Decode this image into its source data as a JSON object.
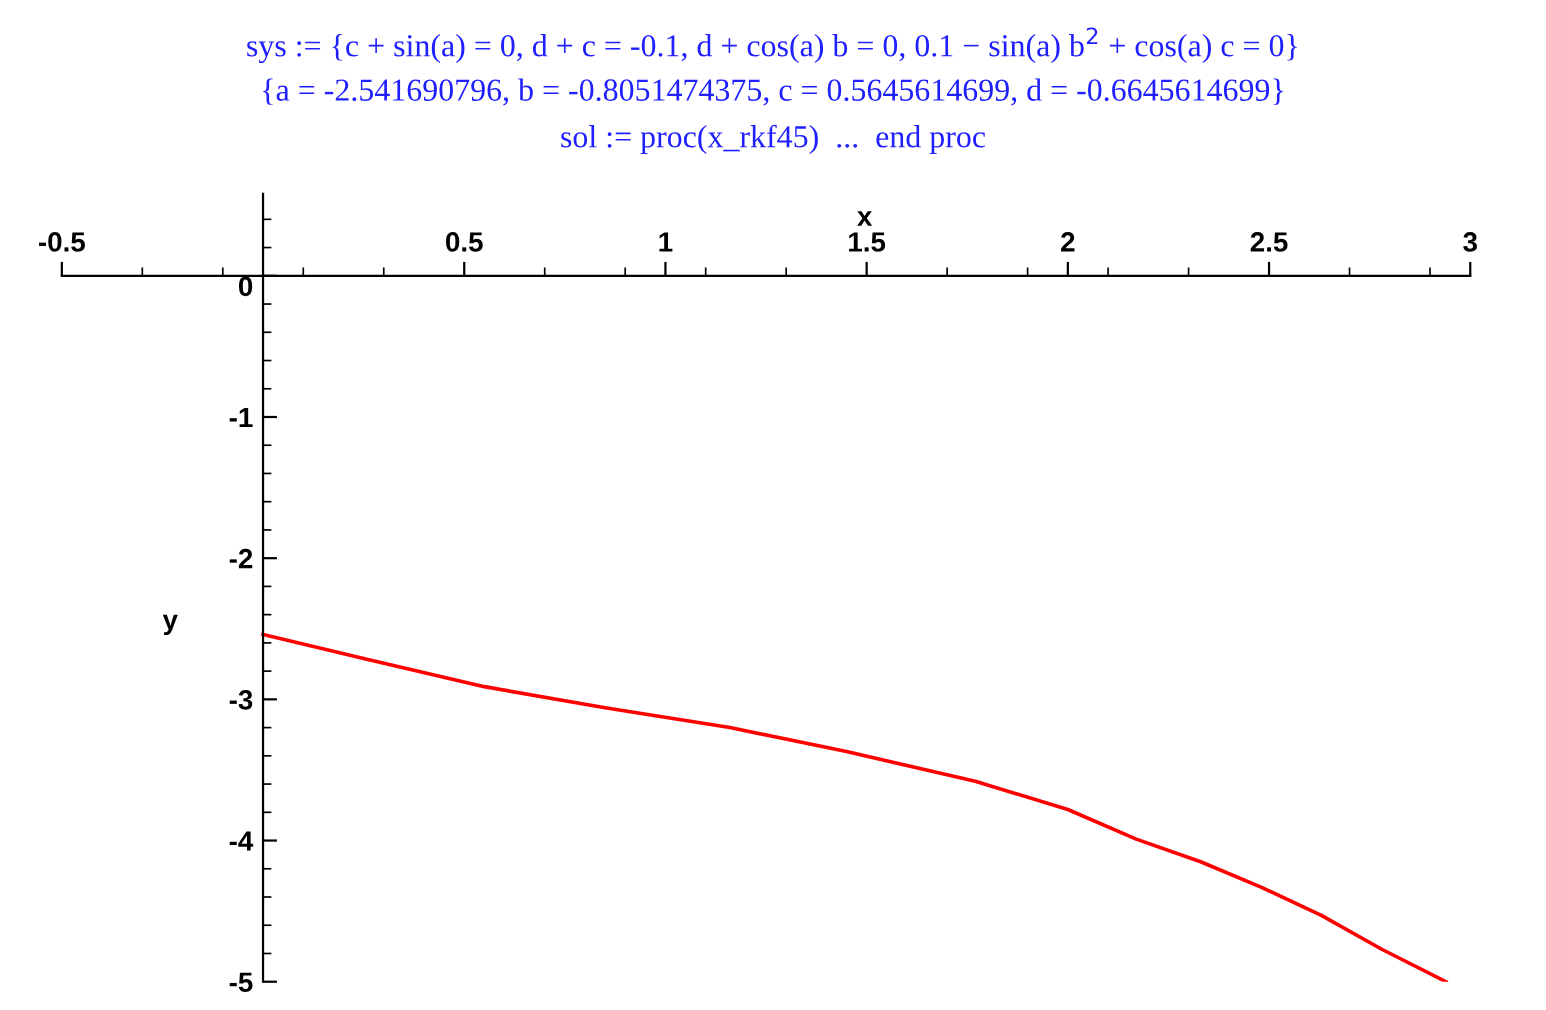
{
  "chart_data": {
    "type": "line",
    "title": "sys := {c + sin(a) = 0, d + c = -0.1, d + cos(a) b = 0, 0.1 − sin(a) b$^{2}$ + cos(a) c = 0}",
    "subtitle": "{a = -2.541690796, b = -0.8051474375, c = 0.5645614699, d = -0.6645614699}",
    "annotations": [
      "sol := proc(x_rkf45)  ...  end proc"
    ],
    "xlabel": "x",
    "ylabel": "y",
    "xlim": [
      -0.5,
      3
    ],
    "ylim": [
      -5,
      0.58
    ],
    "xticks": [
      -0.5,
      0.5,
      1,
      1.5,
      2,
      2.5,
      3
    ],
    "yticks": [
      -5,
      -4,
      -3,
      -2,
      -1,
      0
    ],
    "x": [
      0,
      0.25,
      0.55,
      0.85,
      1.16,
      1.45,
      1.77,
      2.0,
      2.17,
      2.33,
      2.48,
      2.63,
      2.78,
      2.94
    ],
    "series": [
      {
        "color": "#ff0000",
        "values": [
          -2.54,
          -2.71,
          -2.91,
          -3.06,
          -3.2,
          -3.37,
          -3.58,
          -3.78,
          -3.99,
          -4.15,
          -4.33,
          -4.53,
          -4.77,
          -5.0
        ]
      }
    ],
    "grid": false,
    "legend": false
  }
}
